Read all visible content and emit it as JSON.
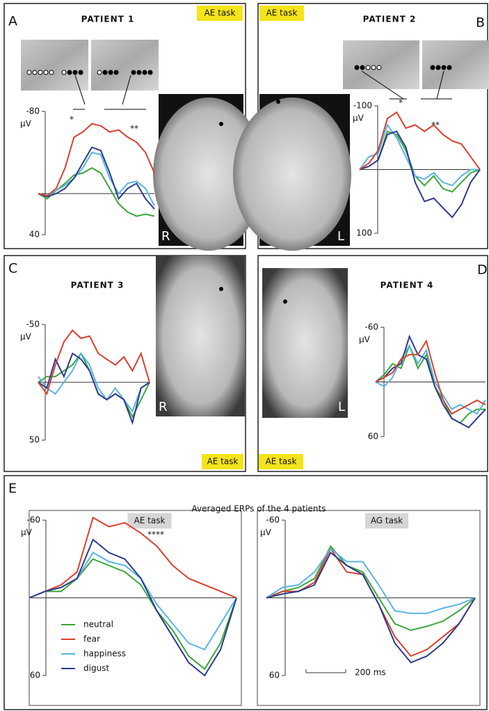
{
  "figure": {
    "panel_labels": [
      "A",
      "B",
      "C",
      "D",
      "E"
    ],
    "side_labels": [
      "R",
      "L",
      "R",
      "L"
    ],
    "averaged_title": "Averaged ERPs of the 4 patients",
    "scale_bar": "200 ms"
  },
  "chart_data": [
    {
      "type": "line",
      "title": "PATIENT 1",
      "task": "AE task",
      "unit": "μV",
      "ylim": [
        -80,
        40
      ],
      "yticks": [
        -80,
        40
      ],
      "inverted": true,
      "annotations": [
        "*",
        "**"
      ],
      "series": [
        {
          "color": "#3aa83a",
          "values": [
            0,
            5,
            -3,
            -10,
            -18,
            -20,
            -25,
            -20,
            -5,
            10,
            18,
            22,
            20,
            22
          ]
        },
        {
          "color": "#5ab4e6",
          "values": [
            0,
            2,
            -3,
            -8,
            -15,
            -25,
            -40,
            -38,
            -15,
            0,
            -10,
            -12,
            -5,
            12
          ]
        },
        {
          "color": "#2b3b8f",
          "values": [
            0,
            3,
            0,
            -5,
            -15,
            -30,
            -45,
            -42,
            -20,
            5,
            -5,
            -10,
            5,
            15
          ]
        },
        {
          "color": "#d9402f",
          "values": [
            0,
            2,
            -5,
            -25,
            -55,
            -60,
            -68,
            -66,
            -60,
            -62,
            -55,
            -50,
            -40,
            -20
          ]
        }
      ]
    },
    {
      "type": "line",
      "title": "PATIENT 2",
      "task": "AE task",
      "unit": "μV",
      "ylim": [
        -100,
        100
      ],
      "yticks": [
        -100,
        100
      ],
      "inverted": true,
      "annotations": [
        "*",
        "**"
      ],
      "series": [
        {
          "color": "#3aa83a",
          "values": [
            0,
            -5,
            -15,
            -60,
            -55,
            -30,
            10,
            25,
            10,
            30,
            35,
            20,
            5,
            0
          ]
        },
        {
          "color": "#5ab4e6",
          "values": [
            0,
            -20,
            -25,
            -70,
            -50,
            -20,
            10,
            15,
            5,
            20,
            25,
            10,
            0,
            0
          ]
        },
        {
          "color": "#2b3b8f",
          "values": [
            0,
            -5,
            -15,
            -55,
            -60,
            -35,
            20,
            50,
            45,
            60,
            75,
            55,
            20,
            0
          ]
        },
        {
          "color": "#d9402f",
          "values": [
            0,
            -10,
            -30,
            -80,
            -90,
            -65,
            -70,
            -60,
            -70,
            -55,
            -45,
            -40,
            -20,
            0
          ]
        }
      ]
    },
    {
      "type": "line",
      "title": "PATIENT 3",
      "task": "AE task",
      "unit": "μV",
      "ylim": [
        -50,
        50
      ],
      "yticks": [
        -50,
        50
      ],
      "inverted": true,
      "series": [
        {
          "color": "#3aa83a",
          "values": [
            0,
            -5,
            -5,
            -10,
            -15,
            -25,
            -10,
            10,
            15,
            10,
            15,
            30,
            15,
            0
          ]
        },
        {
          "color": "#5ab4e6",
          "values": [
            -5,
            5,
            10,
            0,
            -10,
            -25,
            -15,
            5,
            15,
            5,
            15,
            25,
            5,
            0
          ]
        },
        {
          "color": "#2b3b8f",
          "values": [
            0,
            5,
            -20,
            -5,
            -25,
            -20,
            -10,
            10,
            15,
            10,
            15,
            35,
            5,
            0
          ]
        },
        {
          "color": "#d9402f",
          "values": [
            0,
            10,
            -15,
            -35,
            -45,
            -38,
            -40,
            -25,
            -20,
            -15,
            -22,
            -10,
            -25,
            0
          ]
        }
      ]
    },
    {
      "type": "line",
      "title": "PATIENT 4",
      "task": "AE task",
      "unit": "μV",
      "ylim": [
        -60,
        60
      ],
      "yticks": [
        -60,
        60
      ],
      "inverted": true,
      "series": [
        {
          "color": "#3aa83a",
          "values": [
            0,
            -8,
            -20,
            -15,
            -40,
            -15,
            -30,
            5,
            20,
            40,
            45,
            35,
            30,
            30
          ]
        },
        {
          "color": "#5ab4e6",
          "values": [
            0,
            5,
            -5,
            -25,
            -40,
            -20,
            -35,
            0,
            15,
            30,
            25,
            30,
            35,
            20
          ]
        },
        {
          "color": "#2b3b8f",
          "values": [
            0,
            -5,
            -15,
            -20,
            -50,
            -30,
            -25,
            5,
            25,
            40,
            45,
            50,
            40,
            30
          ]
        },
        {
          "color": "#d9402f",
          "values": [
            0,
            -5,
            -10,
            -25,
            -30,
            -30,
            -45,
            -10,
            20,
            35,
            30,
            25,
            20,
            25
          ]
        }
      ]
    },
    {
      "type": "line",
      "task": "AE task",
      "unit": "μV",
      "ylim": [
        -60,
        60
      ],
      "yticks": [
        -60,
        60
      ],
      "inverted": true,
      "annotations": [
        "****"
      ],
      "legend": "lower left",
      "series": [
        {
          "name": "neutral",
          "color": "#3aa83a",
          "values": [
            0,
            -5,
            -5,
            -15,
            -30,
            -25,
            -20,
            -10,
            10,
            25,
            45,
            55,
            35,
            0
          ]
        },
        {
          "name": "fear",
          "color": "#d9402f",
          "values": [
            0,
            -5,
            -10,
            -20,
            -62,
            -55,
            -58,
            -50,
            -40,
            -25,
            -15,
            -10,
            -5,
            0
          ]
        },
        {
          "name": "happiness",
          "color": "#5ab4e6",
          "values": [
            0,
            -5,
            -8,
            -15,
            -35,
            -28,
            -25,
            -15,
            5,
            20,
            35,
            40,
            20,
            0
          ]
        },
        {
          "name": "digust",
          "color": "#2b3b8f",
          "values": [
            0,
            -5,
            -8,
            -15,
            -45,
            -35,
            -30,
            -15,
            10,
            30,
            50,
            60,
            40,
            0
          ]
        }
      ]
    },
    {
      "type": "line",
      "task": "AG task",
      "unit": "μV",
      "ylim": [
        -60,
        60
      ],
      "yticks": [
        -60,
        60
      ],
      "inverted": true,
      "series": [
        {
          "color": "#3aa83a",
          "values": [
            0,
            -5,
            -8,
            -15,
            -40,
            -25,
            -20,
            0,
            20,
            25,
            22,
            18,
            10,
            0
          ]
        },
        {
          "color": "#d9402f",
          "values": [
            0,
            -5,
            -5,
            -12,
            -38,
            -20,
            -18,
            5,
            30,
            45,
            40,
            30,
            20,
            0
          ]
        },
        {
          "color": "#5ab4e6",
          "values": [
            0,
            -8,
            -10,
            -20,
            -38,
            -28,
            -28,
            -10,
            10,
            12,
            12,
            8,
            5,
            0
          ]
        },
        {
          "color": "#2b3b8f",
          "values": [
            0,
            -3,
            -5,
            -10,
            -35,
            -25,
            -18,
            5,
            35,
            50,
            45,
            35,
            20,
            0
          ]
        }
      ]
    }
  ]
}
